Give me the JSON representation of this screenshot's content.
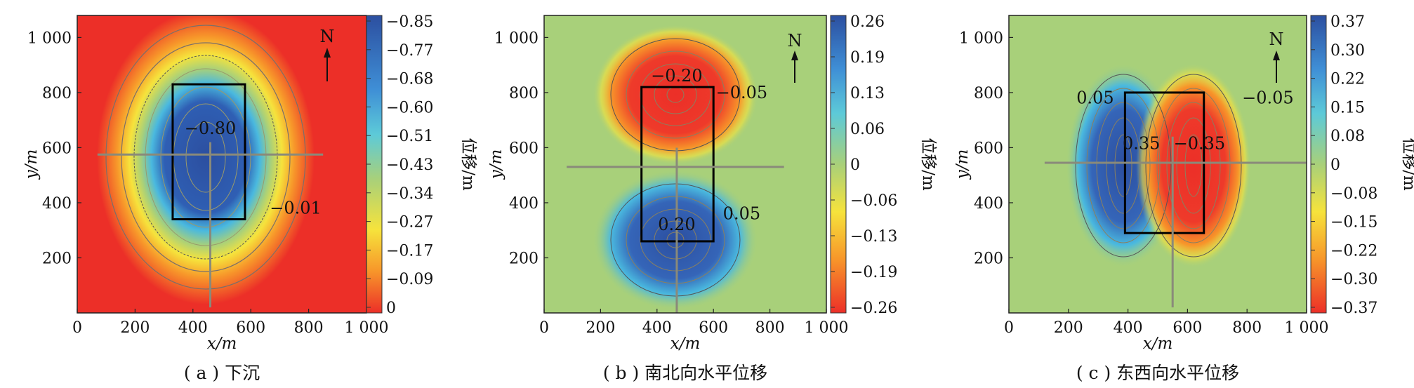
{
  "chart_data": [
    {
      "type": "heatmap",
      "caption": "( a ) 下沉",
      "xlabel": "x/m",
      "ylabel": "y/m",
      "xticks": [
        "0",
        "200",
        "400",
        "600",
        "800",
        "1 000"
      ],
      "yticks": [
        "200",
        "400",
        "600",
        "800",
        "1 000"
      ],
      "xlim": [
        0,
        1000
      ],
      "ylim": [
        0,
        1080
      ],
      "colorbar_label": "位移/m",
      "colorbar_ticks": [
        "-0.85",
        "-0.77",
        "-0.68",
        "-0.60",
        "-0.51",
        "-0.43",
        "-0.34",
        "-0.27",
        "-0.17",
        "-0.09",
        "0"
      ],
      "colorbar_range": [
        -0.85,
        0
      ],
      "north_label": "N",
      "annotations": [
        {
          "text": "-0.80",
          "x": 460,
          "y": 650
        },
        {
          "text": "-0.01",
          "x": 755,
          "y": 360
        }
      ],
      "panel_rect": [
        330,
        340,
        580,
        830
      ],
      "survey_lines": {
        "ew": [
          [
            70,
            575
          ],
          [
            850,
            575
          ]
        ],
        "ns": [
          [
            460,
            20
          ],
          [
            460,
            620
          ]
        ]
      }
    },
    {
      "type": "heatmap",
      "caption": "( b ) 南北向水平位移",
      "xlabel": "x/m",
      "ylabel": "y/m",
      "xticks": [
        "0",
        "200",
        "400",
        "600",
        "800",
        "1 000"
      ],
      "yticks": [
        "200",
        "400",
        "600",
        "800",
        "1 000"
      ],
      "xlim": [
        0,
        1000
      ],
      "ylim": [
        0,
        1080
      ],
      "colorbar_label": "位移/m",
      "colorbar_ticks": [
        "0.26",
        "0.19",
        "0.13",
        "0.06",
        "0",
        "-0.06",
        "-0.13",
        "-0.19",
        "-0.26"
      ],
      "colorbar_range": [
        -0.26,
        0.26
      ],
      "north_label": "N",
      "annotations": [
        {
          "text": "-0.20",
          "x": 470,
          "y": 840
        },
        {
          "text": "-0.05",
          "x": 700,
          "y": 780
        },
        {
          "text": "0.20",
          "x": 470,
          "y": 300
        },
        {
          "text": "0.05",
          "x": 700,
          "y": 340
        }
      ],
      "panel_rect": [
        345,
        260,
        600,
        820
      ],
      "survey_lines": {
        "ew": [
          [
            80,
            530
          ],
          [
            850,
            530
          ]
        ],
        "ns": [
          [
            470,
            0
          ],
          [
            470,
            600
          ]
        ]
      }
    },
    {
      "type": "heatmap",
      "caption": "( c ) 东西向水平位移",
      "xlabel": "x/m",
      "ylabel": "y/m",
      "xticks": [
        "0",
        "200",
        "400",
        "600",
        "800",
        "1 000"
      ],
      "yticks": [
        "200",
        "400",
        "600",
        "800",
        "1 000"
      ],
      "xlim": [
        0,
        1000
      ],
      "ylim": [
        0,
        1080
      ],
      "colorbar_label": "位移/m",
      "colorbar_ticks": [
        "0.37",
        "0.30",
        "0.22",
        "0.15",
        "0.08",
        "0",
        "-0.08",
        "-0.15",
        "-0.22",
        "-0.30",
        "-0.37"
      ],
      "colorbar_range": [
        -0.37,
        0.37
      ],
      "north_label": "N",
      "annotations": [
        {
          "text": "0.05",
          "x": 290,
          "y": 760
        },
        {
          "text": "0.35",
          "x": 445,
          "y": 595
        },
        {
          "text": "-0.35",
          "x": 640,
          "y": 595
        },
        {
          "text": "-0.05",
          "x": 870,
          "y": 760
        }
      ],
      "panel_rect": [
        390,
        290,
        655,
        800
      ],
      "survey_lines": {
        "ew": [
          [
            120,
            545
          ],
          [
            1000,
            545
          ]
        ],
        "ns": [
          [
            550,
            20
          ],
          [
            550,
            640
          ]
        ]
      }
    }
  ]
}
